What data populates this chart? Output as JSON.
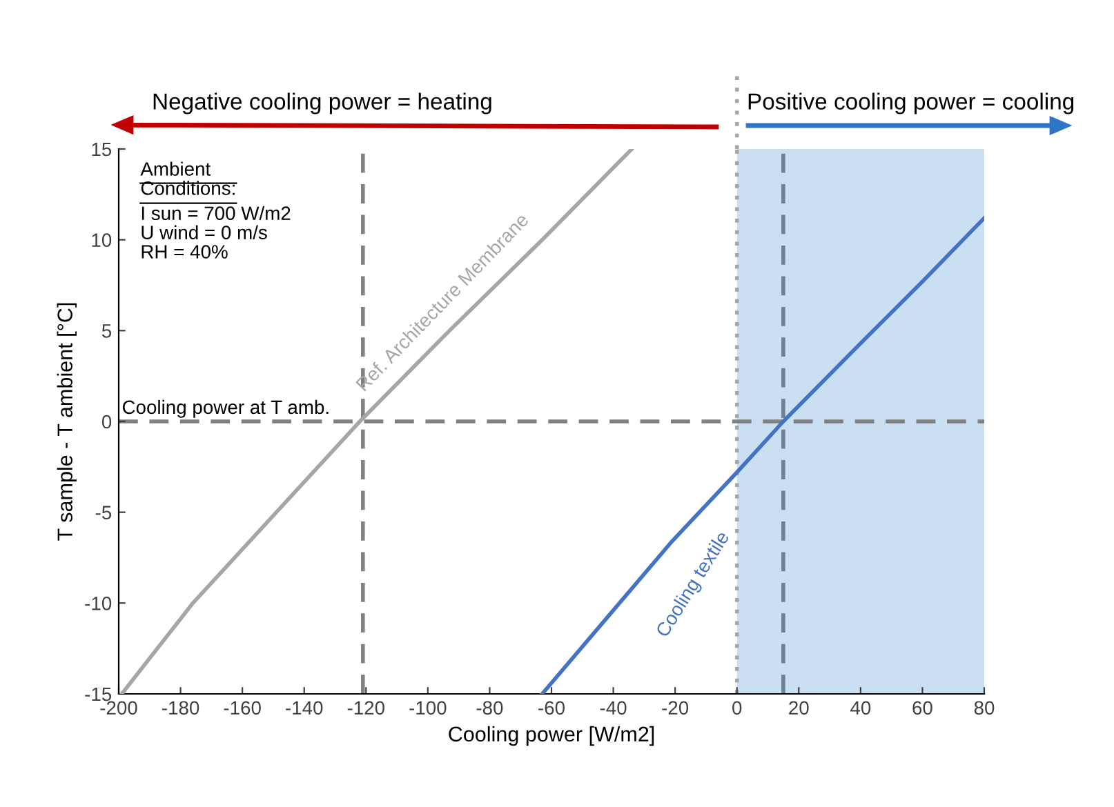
{
  "chart_data": {
    "type": "line",
    "xlabel": "Cooling power [W/m2]",
    "ylabel": "T sample - T ambient [°C]",
    "xlim": [
      -200,
      80
    ],
    "ylim": [
      -15,
      15
    ],
    "xticks": [
      -200,
      -180,
      -160,
      -140,
      -120,
      -100,
      -80,
      -60,
      -40,
      -20,
      0,
      20,
      40,
      60,
      80
    ],
    "yticks": [
      -15,
      -10,
      -5,
      0,
      5,
      10,
      15
    ],
    "series": [
      {
        "name": "Ref. Architecture Membrane",
        "color": "#a6a6a6",
        "x": [
          -199,
          -176,
          -149,
          -122,
          -93,
          -63,
          -34
        ],
        "values": [
          -15,
          -10,
          -5,
          0,
          5,
          10,
          15
        ]
      },
      {
        "name": "Cooling textile",
        "color": "#4472c4",
        "x": [
          -63,
          -42,
          -21,
          0,
          15,
          40,
          60,
          80
        ],
        "values": [
          -15,
          -10.8,
          -6.6,
          -2.8,
          0,
          4.3,
          7.7,
          11.2
        ]
      }
    ],
    "ref_lines": [
      {
        "axis": "y",
        "value": 0,
        "label": "Cooling power at T amb.",
        "color": "#808080",
        "line_style": "dashed"
      },
      {
        "axis": "x",
        "value": -121,
        "label": null,
        "color": "#808080",
        "line_style": "dashed"
      },
      {
        "axis": "x",
        "value": 15,
        "label": null,
        "color": "#6f7f94",
        "line_style": "dashed"
      },
      {
        "axis": "x",
        "value": 0,
        "label": null,
        "color": "#a6a6a6",
        "line_style": "dotted"
      }
    ],
    "bands": [
      {
        "axis": "x",
        "from": 0,
        "to": 80,
        "label": null,
        "color": "#bdd7ee"
      }
    ],
    "annotations": [
      "Negative cooling power = heating",
      "Positive cooling power = cooling",
      "Ambient\nConditions:",
      "I sun = 700 W/m2\nU wind = 0 m/s\nRH = 40%"
    ],
    "grid": false,
    "legend": false,
    "marker": "none",
    "line_style": "solid"
  }
}
